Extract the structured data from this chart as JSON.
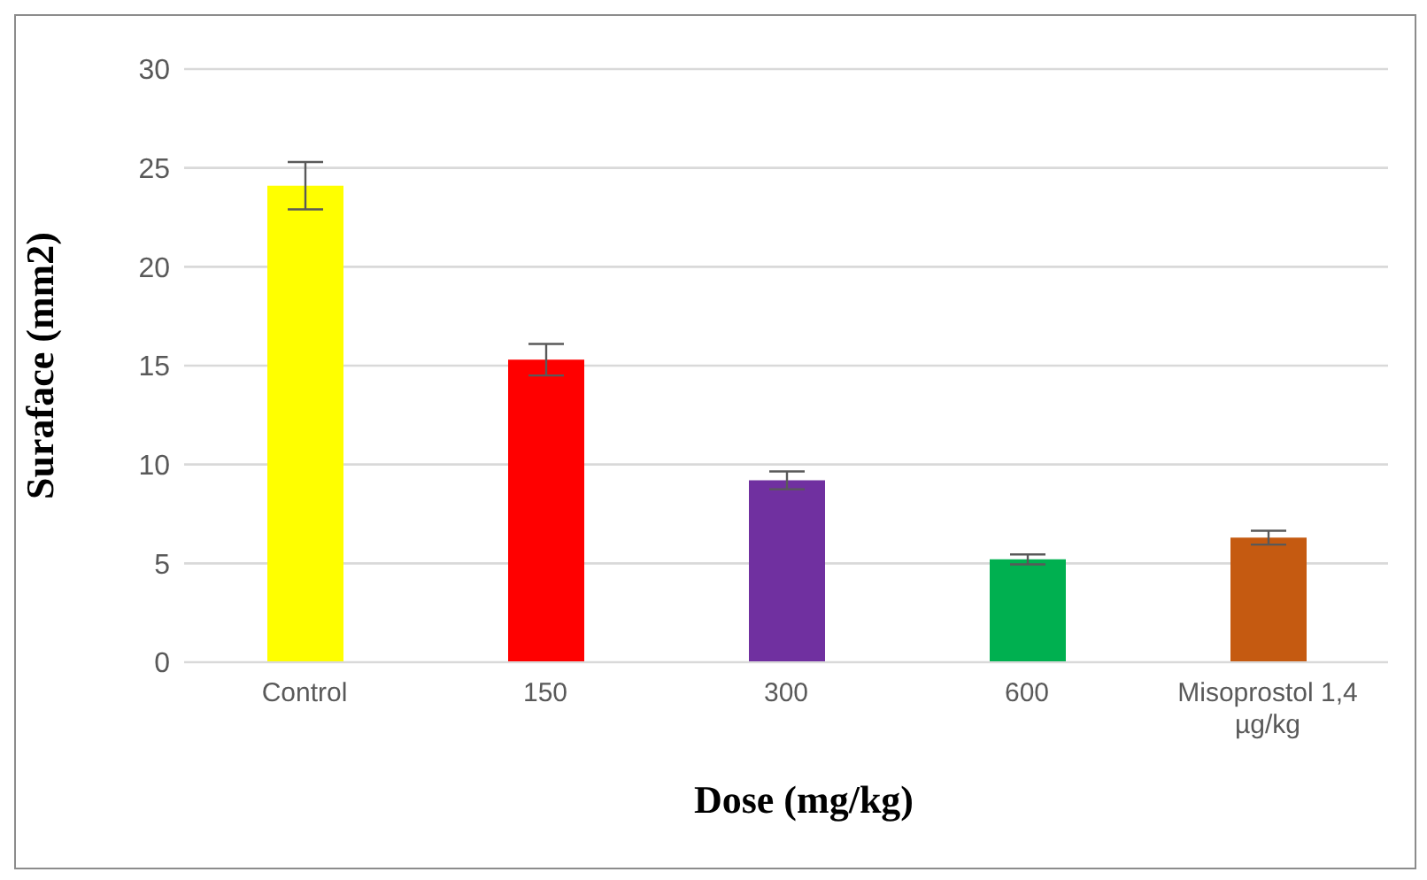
{
  "chart_data": {
    "type": "bar",
    "xlabel": "Dose (mg/kg)",
    "ylabel": "Suraface (mm2)",
    "categories": [
      "Control",
      "150",
      "300",
      "600",
      "Misoprostol 1,4 µg/kg"
    ],
    "values": [
      24.1,
      15.3,
      9.2,
      5.2,
      6.3
    ],
    "errors": [
      1.2,
      0.8,
      0.45,
      0.25,
      0.35
    ],
    "colors": [
      "#ffff00",
      "#ff0000",
      "#7030a0",
      "#00b050",
      "#c55a11"
    ],
    "ylim": [
      0,
      30
    ],
    "yticks": [
      0,
      5,
      10,
      15,
      20,
      25,
      30
    ],
    "grid": "y",
    "legend": false
  }
}
